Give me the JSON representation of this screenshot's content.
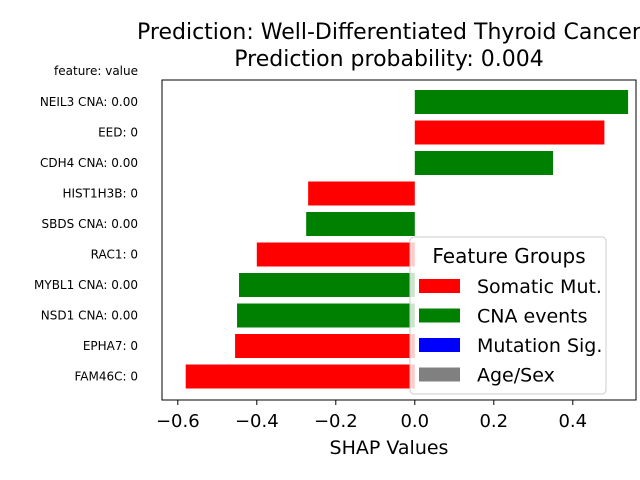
{
  "chart_data": {
    "type": "bar",
    "orientation": "horizontal",
    "title": "Prediction: Well-Differentiated Thyroid Cancer",
    "subtitle": "Prediction probability: 0.004",
    "y_header": "feature: value",
    "xlabel": "SHAP Values",
    "xlim": [
      -0.64,
      0.56
    ],
    "xticks": [
      -0.6,
      -0.4,
      -0.2,
      0.0,
      0.2,
      0.4
    ],
    "xtick_labels": [
      "−0.6",
      "−0.4",
      "−0.2",
      "0.0",
      "0.2",
      "0.4"
    ],
    "categories": [
      "NEIL3 CNA: 0.00",
      "EED: 0",
      "CDH4 CNA: 0.00",
      "HIST1H3B: 0",
      "SBDS CNA: 0.00",
      "RAC1: 0",
      "MYBL1 CNA: 0.00",
      "NSD1 CNA: 0.00",
      "EPHA7: 0",
      "FAM46C: 0"
    ],
    "values": [
      0.54,
      0.48,
      0.35,
      -0.27,
      -0.275,
      -0.4,
      -0.445,
      -0.45,
      -0.455,
      -0.58
    ],
    "groups": [
      "CNA events",
      "Somatic Mut.",
      "CNA events",
      "Somatic Mut.",
      "CNA events",
      "Somatic Mut.",
      "CNA events",
      "CNA events",
      "Somatic Mut.",
      "Somatic Mut."
    ],
    "legend": {
      "title": "Feature Groups",
      "placement": "lower-right",
      "entries": [
        {
          "label": "Somatic Mut.",
          "color": "#ff0000"
        },
        {
          "label": "CNA events",
          "color": "#008000"
        },
        {
          "label": "Mutation Sig.",
          "color": "#0000ff"
        },
        {
          "label": "Age/Sex",
          "color": "#808080"
        }
      ]
    }
  }
}
